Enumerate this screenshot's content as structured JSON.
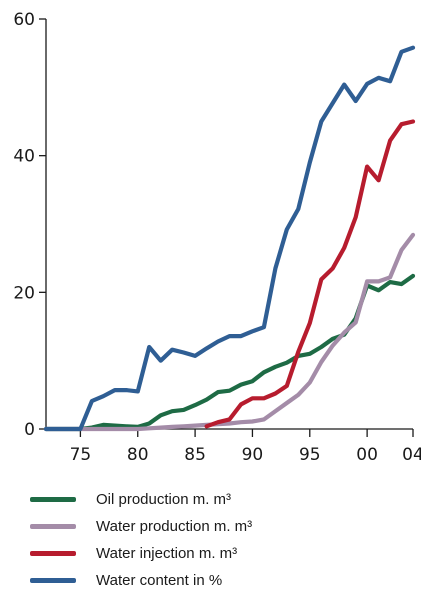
{
  "chart_data": {
    "type": "line",
    "title": "",
    "xlabel": "",
    "ylabel": "",
    "xlim": [
      1972,
      2004
    ],
    "ylim": [
      0,
      60
    ],
    "grid": false,
    "legend_position": "bottom",
    "x_ticks": [
      {
        "value": 1975,
        "label": "75"
      },
      {
        "value": 1980,
        "label": "80"
      },
      {
        "value": 1985,
        "label": "85"
      },
      {
        "value": 1990,
        "label": "90"
      },
      {
        "value": 1995,
        "label": "95"
      },
      {
        "value": 2000,
        "label": "00"
      },
      {
        "value": 2004,
        "label": "04"
      }
    ],
    "y_ticks": [
      {
        "value": 0,
        "label": "0"
      },
      {
        "value": 20,
        "label": "20"
      },
      {
        "value": 40,
        "label": "40"
      },
      {
        "value": 60,
        "label": "60"
      }
    ],
    "x": [
      1972,
      1973,
      1974,
      1975,
      1976,
      1977,
      1978,
      1979,
      1980,
      1981,
      1982,
      1983,
      1984,
      1985,
      1986,
      1987,
      1988,
      1989,
      1990,
      1991,
      1992,
      1993,
      1994,
      1995,
      1996,
      1997,
      1998,
      1999,
      2000,
      2001,
      2002,
      2003,
      2004
    ],
    "series": [
      {
        "name": "Oil production m. m³",
        "color": "#1e6b45",
        "values": [
          0,
          0,
          0,
          0,
          0.2,
          0.6,
          0.5,
          0.4,
          0.3,
          0.8,
          2,
          2.6,
          2.8,
          3.5,
          4.3,
          5.4,
          5.6,
          6.5,
          7,
          8.3,
          9.1,
          9.7,
          10.7,
          11,
          12,
          13.2,
          13.8,
          16.2,
          21,
          20.3,
          21.5,
          21.2,
          22.4
        ]
      },
      {
        "name": "Water production m. m³",
        "color": "#a48ca8",
        "values": [
          0,
          0,
          0,
          0,
          0,
          0,
          0,
          0,
          0,
          0.1,
          0.2,
          0.3,
          0.4,
          0.5,
          0.6,
          0.7,
          0.8,
          1,
          1.1,
          1.4,
          2.6,
          3.8,
          5,
          6.8,
          9.8,
          12.2,
          14.1,
          15.6,
          21.6,
          21.6,
          22.2,
          26.2,
          28.4
        ]
      },
      {
        "name": "Water injection m. m³",
        "color": "#b71c2e",
        "values": [
          null,
          null,
          null,
          null,
          null,
          null,
          null,
          null,
          null,
          null,
          null,
          null,
          null,
          null,
          0.4,
          1,
          1.4,
          3.6,
          4.5,
          4.5,
          5.2,
          6.3,
          11.3,
          15.5,
          21.9,
          23.5,
          26.5,
          31,
          38.4,
          36.4,
          42.2,
          44.6,
          45
        ]
      },
      {
        "name": "Water content in %",
        "color": "#2f5e94",
        "values": [
          0,
          0,
          0,
          0,
          4.1,
          4.8,
          5.7,
          5.7,
          5.5,
          12,
          10,
          11.6,
          11.2,
          10.7,
          11.8,
          12.8,
          13.6,
          13.6,
          14.3,
          14.9,
          23.5,
          29.2,
          32.2,
          39,
          45,
          47.7,
          50.4,
          48,
          50.5,
          51.4,
          50.9,
          55.2,
          55.8
        ]
      }
    ]
  }
}
